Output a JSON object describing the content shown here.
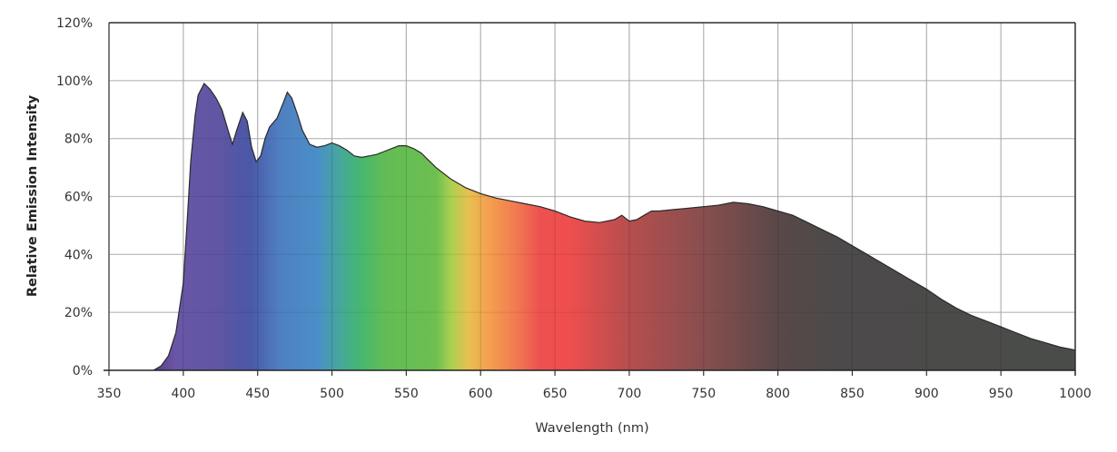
{
  "chart_data": {
    "type": "area",
    "title": "",
    "xlabel": "Wavelength (nm)",
    "ylabel": "Relative Emission Intensity",
    "xlim": [
      350,
      1000
    ],
    "ylim": [
      0,
      120
    ],
    "x_ticks": [
      350,
      400,
      450,
      500,
      550,
      600,
      650,
      700,
      750,
      800,
      850,
      900,
      950,
      1000
    ],
    "x_tick_labels": [
      "350",
      "400",
      "450",
      "500",
      "550",
      "600",
      "650",
      "700",
      "750",
      "800",
      "850",
      "900",
      "950",
      "1000"
    ],
    "y_ticks": [
      0,
      20,
      40,
      60,
      80,
      100,
      120
    ],
    "y_tick_labels": [
      "0%",
      "20%",
      "40%",
      "60%",
      "80%",
      "100%",
      "120%"
    ],
    "grid": true,
    "legend": null,
    "series": [
      {
        "name": "Relative Emission Intensity",
        "fill": "visible-spectrum gradient",
        "x": [
          380,
          385,
          390,
          395,
          400,
          403,
          405,
          408,
          410,
          414,
          418,
          422,
          426,
          430,
          433,
          436,
          440,
          443,
          446,
          449,
          452,
          455,
          458,
          463,
          467,
          470,
          473,
          477,
          480,
          485,
          490,
          495,
          500,
          505,
          510,
          515,
          520,
          525,
          530,
          535,
          540,
          545,
          550,
          555,
          560,
          565,
          570,
          575,
          580,
          585,
          590,
          595,
          600,
          610,
          620,
          630,
          640,
          650,
          660,
          670,
          680,
          690,
          695,
          700,
          705,
          710,
          715,
          720,
          730,
          740,
          750,
          760,
          770,
          780,
          790,
          800,
          810,
          820,
          830,
          840,
          850,
          860,
          870,
          880,
          890,
          900,
          910,
          920,
          930,
          940,
          950,
          960,
          970,
          980,
          990,
          1000
        ],
        "values": [
          0,
          1.5,
          5,
          13,
          30,
          55,
          72,
          88,
          95,
          99,
          97,
          94,
          90,
          83,
          78,
          83,
          89,
          86,
          77,
          72,
          74,
          80,
          84,
          87,
          92,
          96,
          94,
          88,
          83,
          78,
          77,
          77.5,
          78.5,
          77.5,
          76,
          74,
          73.5,
          74,
          74.5,
          75.5,
          76.5,
          77.5,
          77.5,
          76.5,
          75,
          72.5,
          70,
          68,
          66,
          64.5,
          63,
          62,
          61,
          59.5,
          58.5,
          57.5,
          56.5,
          55,
          53,
          51.5,
          51,
          52,
          53.5,
          51.5,
          52,
          53.5,
          55,
          55,
          55.5,
          56,
          56.5,
          57,
          58,
          57.5,
          56.5,
          55,
          53.5,
          51,
          48.5,
          46,
          43,
          40,
          37,
          34,
          31,
          28,
          24.5,
          21.5,
          19,
          17,
          15,
          13,
          11,
          9.5,
          8,
          7
        ]
      }
    ]
  },
  "colors": {
    "grid": "#d0d0d0",
    "axis": "#333333",
    "outline": "#2a2a2a",
    "spectrum_stops": [
      {
        "nm": 380,
        "color": "#5b3f8a"
      },
      {
        "nm": 395,
        "color": "#6a56a6"
      },
      {
        "nm": 425,
        "color": "#5e56a4"
      },
      {
        "nm": 445,
        "color": "#4a58a6"
      },
      {
        "nm": 465,
        "color": "#4f80c0"
      },
      {
        "nm": 490,
        "color": "#4a8ec8"
      },
      {
        "nm": 505,
        "color": "#46a79c"
      },
      {
        "nm": 520,
        "color": "#46b86e"
      },
      {
        "nm": 535,
        "color": "#62bc55"
      },
      {
        "nm": 570,
        "color": "#6dbf50"
      },
      {
        "nm": 580,
        "color": "#aad050"
      },
      {
        "nm": 592,
        "color": "#e8c050"
      },
      {
        "nm": 605,
        "color": "#f5a050"
      },
      {
        "nm": 625,
        "color": "#f07850"
      },
      {
        "nm": 640,
        "color": "#ee5050"
      },
      {
        "nm": 660,
        "color": "#ee4e4e"
      },
      {
        "nm": 700,
        "color": "#b64e4e"
      },
      {
        "nm": 750,
        "color": "#884e4e"
      },
      {
        "nm": 800,
        "color": "#5a4848"
      },
      {
        "nm": 840,
        "color": "#4c4a4a"
      },
      {
        "nm": 1000,
        "color": "#4a4c4a"
      }
    ]
  }
}
